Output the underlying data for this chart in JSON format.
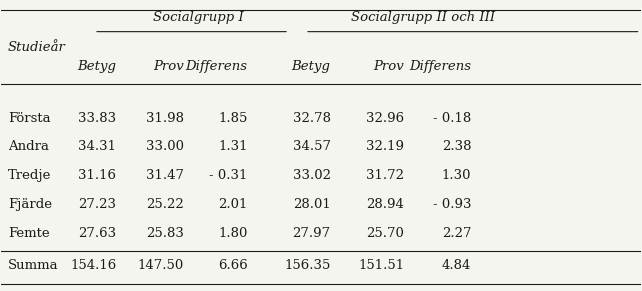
{
  "col_header_row1": [
    "",
    "Socialgrupp I",
    "",
    "",
    "Socialgrupp II och III",
    "",
    ""
  ],
  "col_header_row2": [
    "Studieår",
    "Betyg",
    "Prov",
    "Differens",
    "Betyg",
    "Prov",
    "Differens"
  ],
  "rows": [
    [
      "Första",
      "33.83",
      "31.98",
      "1.85",
      "32.78",
      "32.96",
      "- 0.18"
    ],
    [
      "Andra",
      "34.31",
      "33.00",
      "1.31",
      "34.57",
      "32.19",
      "2.38"
    ],
    [
      "Tredje",
      "31.16",
      "31.47",
      "- 0.31",
      "33.02",
      "31.72",
      "1.30"
    ],
    [
      "Fjärde",
      "27.23",
      "25.22",
      "2.01",
      "28.01",
      "28.94",
      "- 0.93"
    ],
    [
      "Femte",
      "27.63",
      "25.83",
      "1.80",
      "27.97",
      "25.70",
      "2.27"
    ],
    [
      "Summa",
      "154.16",
      "147.50",
      "6.66",
      "156.35",
      "151.51",
      "4.84"
    ]
  ],
  "bg_color": "#f5f5f0",
  "text_color": "#1a1a1a",
  "font_size": 9.5,
  "header_font_size": 9.5
}
